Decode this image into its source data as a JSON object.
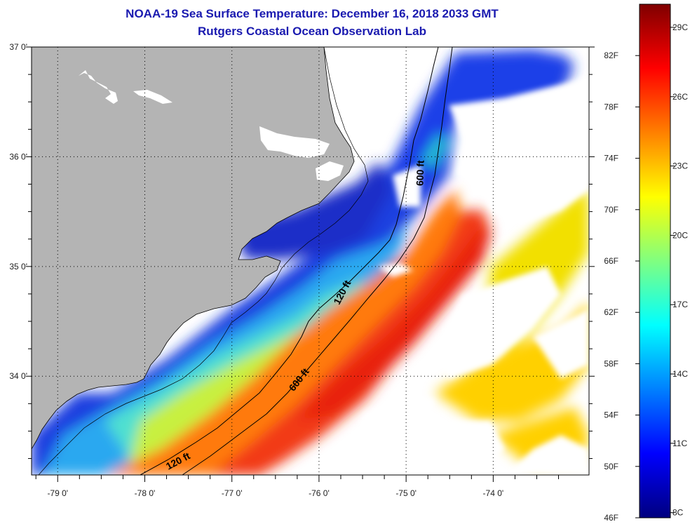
{
  "title": "NOAA-19 Sea Surface Temperature:  December 16, 2018 2033 GMT",
  "subtitle": "Rutgers Coastal Ocean Observation Lab",
  "map": {
    "longitude_ticks": [
      "-79 0'",
      "-78 0'",
      "-77 0'",
      "-76 0'",
      "-75 0'",
      "-74 0'"
    ],
    "longitude_values": [
      -79,
      -78,
      -77,
      -76,
      -75,
      -74
    ],
    "latitude_ticks": [
      "37 0'",
      "36 0'",
      "35 0'",
      "34 0'"
    ],
    "latitude_values": [
      37,
      36,
      35,
      34
    ],
    "lon_range": [
      -79.3,
      -72.9
    ],
    "lat_range": [
      33.1,
      37.0
    ],
    "contour_labels": [
      {
        "text": "600 ft",
        "lon": -74.8,
        "lat": 35.85
      },
      {
        "text": "120 ft",
        "lon": -75.7,
        "lat": 34.75
      },
      {
        "text": "600 ft",
        "lon": -76.2,
        "lat": 33.95
      },
      {
        "text": "120 ft",
        "lon": -77.6,
        "lat": 33.2
      }
    ],
    "colors": {
      "land": "#b4b4b4",
      "no_data": "#ffffff",
      "coastline": "#000000"
    }
  },
  "colorbar": {
    "fahrenheit_labels": [
      "82F",
      "78F",
      "74F",
      "70F",
      "66F",
      "62F",
      "58F",
      "54F",
      "50F",
      "46F"
    ],
    "fahrenheit_values": [
      82,
      78,
      74,
      70,
      66,
      62,
      58,
      54,
      50,
      46
    ],
    "celsius_labels": [
      "29C",
      "26C",
      "23C",
      "20C",
      "17C",
      "14C",
      "11C",
      "8C"
    ],
    "celsius_values": [
      29,
      26,
      23,
      20,
      17,
      14,
      11,
      8
    ],
    "range_f": [
      46,
      86
    ],
    "gradient_colors": [
      "#00007f",
      "#0000ff",
      "#0080ff",
      "#00ffff",
      "#80ff80",
      "#ffff00",
      "#ff8000",
      "#ff0000",
      "#7f0000"
    ]
  }
}
